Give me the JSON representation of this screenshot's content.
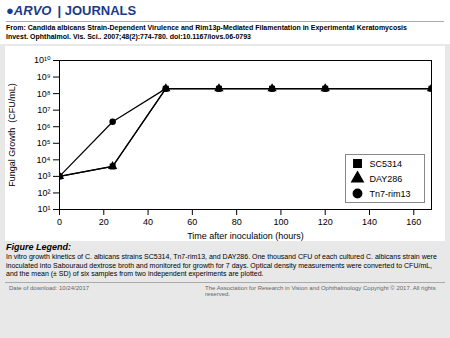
{
  "chart_data": {
    "type": "line",
    "annotations": [
      "●ARVO",
      "| JOURNALS",
      "From: Candida albicans Strain-Dependent Virulence and Rim13p-Mediated Filamentation in Experimental Keratomycosis",
      "Invest. Ophthalmol. Vis. Sci.. 2007;48(2):774-780. doi:10.1167/iovs.06-0793",
      "Figure Legend:",
      "In vitro growth kinetics of C. albicans strains SC5314, Tn7-rim13, and DAY286. One thousand CFU of each cultured C.\nalbicans strain were inoculated into Sabouraud dextrose broth and monitored for growth for 7 days. Optical density\nmeasurements were converted to CFU/mL, and the mean (± SD) of six samples from two independent experiments are\nplotted.",
      "Date of download: 10/24/2017",
      "The Association for Research in Vision and Ophthalmology Copyright © 2017. All rights reserved."
    ],
    "x_label": "Time after inoculation (hours)",
    "y_label": "Fungal Growth  (CFU/mL)",
    "x": [
      0,
      24,
      48,
      72,
      96,
      120,
      168
    ],
    "series": [
      {
        "name": "SC5314",
        "color": "black",
        "marker": "square",
        "values": [
          1000,
          4000,
          200000000,
          200000000,
          200000000,
          200000000,
          200000000
        ],
        "errors": [
          200,
          800,
          30000000,
          30000000,
          30000000,
          30000000,
          30000000
        ]
      },
      {
        "name": "DAY286",
        "color": "black",
        "marker": "triangle",
        "values": [
          1000,
          4000,
          200000000,
          200000000,
          200000000,
          200000000,
          200000000
        ],
        "errors": [
          200,
          800,
          30000000,
          30000000,
          30000000,
          30000000,
          30000000
        ]
      },
      {
        "name": "Tn7-rim13",
        "color": "black",
        "marker": "circle",
        "values": [
          1000,
          2000000,
          200000000,
          200000000,
          200000000,
          200000000,
          200000000
        ],
        "errors": [
          200,
          800000,
          30000000,
          30000000,
          30000000,
          30000000,
          30000000
        ]
      }
    ],
    "xlim": [
      0,
      168
    ],
    "xticks": [
      0,
      20,
      40,
      60,
      80,
      100,
      120,
      140,
      160
    ],
    "ylim": [
      10,
      10000000000
    ],
    "yticks": [
      {
        "value": 10,
        "label": "10¹"
      },
      {
        "value": 100,
        "label": "10²"
      },
      {
        "value": 1000,
        "label": "10³"
      },
      {
        "value": 10000,
        "label": "10⁴"
      },
      {
        "value": 100000,
        "label": "10⁵"
      },
      {
        "value": 1000000,
        "label": "10⁶"
      },
      {
        "value": 10000000,
        "label": "10⁷"
      },
      {
        "value": 100000000,
        "label": "10⁸"
      },
      {
        "value": 1000000000,
        "label": "10⁹"
      },
      {
        "value": 10000000000,
        "label": "10¹⁰"
      }
    ],
    "log": "y",
    "grid": false,
    "legend": "lower right"
  }
}
